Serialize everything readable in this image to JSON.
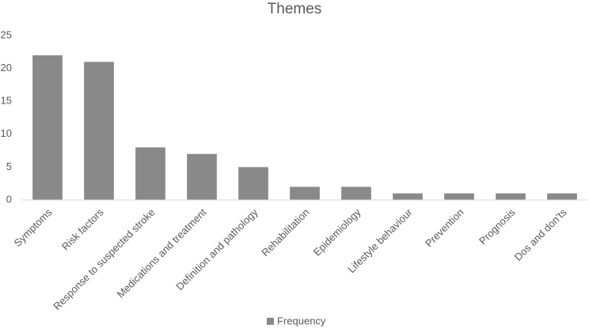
{
  "chart_data": {
    "type": "bar",
    "title": "Themes",
    "categories": [
      "Symptoms",
      "Risk factors",
      "Response to suspected stroke",
      "Medications and treatment",
      "Definition and pathology",
      "Rehabilitation",
      "Epidemiology",
      "Lifestyle behaviour",
      "Prevention",
      "Prognosis",
      "Dos and don’ts"
    ],
    "series": [
      {
        "name": "Frequency",
        "color": "#898989",
        "values": [
          22,
          21,
          8,
          7,
          5,
          2,
          2,
          1,
          1,
          1,
          1
        ]
      }
    ],
    "ylim": [
      0,
      25
    ],
    "yticks": [
      0,
      5,
      10,
      15,
      20,
      25
    ],
    "grid": false,
    "legend": "bottom"
  }
}
